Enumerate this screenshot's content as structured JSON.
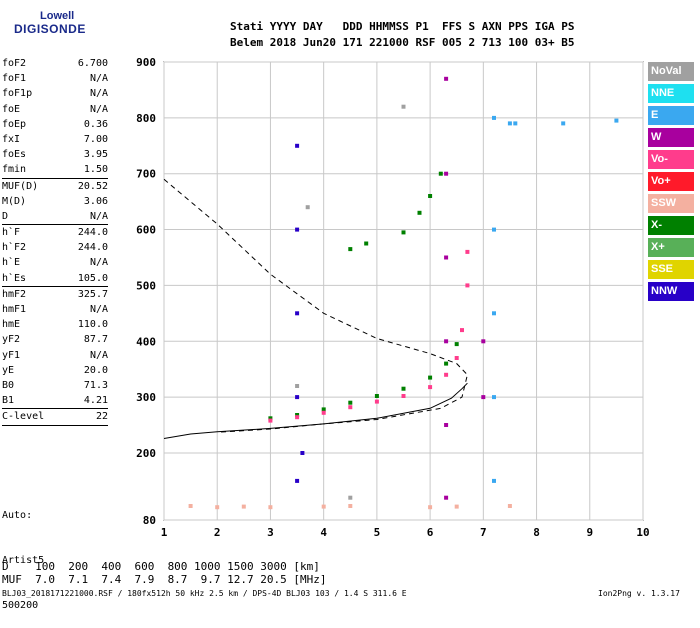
{
  "logo": {
    "line1": "Lowell",
    "line2": "DIGISONDE"
  },
  "header": {
    "cols": [
      "Stati",
      "YYYY",
      "DAY",
      "DDD",
      "HHMMSS",
      "P1",
      "FFS",
      "S",
      "AXN",
      "PPS",
      "IGA",
      "PS"
    ],
    "vals": [
      "Belem",
      "2018",
      "Jun20",
      "171",
      "221000",
      "RSF",
      "005",
      "2",
      "713",
      "100",
      "03+",
      "B5"
    ]
  },
  "params": [
    [
      {
        "k": "foF2",
        "v": "6.700"
      },
      {
        "k": "foF1",
        "v": "N/A"
      },
      {
        "k": "foF1p",
        "v": "N/A"
      },
      {
        "k": "foE",
        "v": "N/A"
      },
      {
        "k": "foEp",
        "v": "0.36"
      },
      {
        "k": "fxI",
        "v": "7.00"
      },
      {
        "k": "foEs",
        "v": "3.95"
      },
      {
        "k": "fmin",
        "v": "1.50"
      }
    ],
    [
      {
        "k": "MUF(D)",
        "v": "20.52"
      },
      {
        "k": "M(D)",
        "v": "3.06"
      },
      {
        "k": "D",
        "v": "N/A"
      }
    ],
    [
      {
        "k": "h`F",
        "v": "244.0"
      },
      {
        "k": "h`F2",
        "v": "244.0"
      },
      {
        "k": "h`E",
        "v": "N/A"
      },
      {
        "k": "h`Es",
        "v": "105.0"
      }
    ],
    [
      {
        "k": "hmF2",
        "v": "325.7"
      },
      {
        "k": "hmF1",
        "v": "N/A"
      },
      {
        "k": "hmE",
        "v": "110.0"
      },
      {
        "k": "yF2",
        "v": "87.7"
      },
      {
        "k": "yF1",
        "v": "N/A"
      },
      {
        "k": "yE",
        "v": "20.0"
      },
      {
        "k": "B0",
        "v": "71.3"
      },
      {
        "k": "B1",
        "v": "4.21"
      }
    ],
    [
      {
        "k": "C-level",
        "v": "22"
      }
    ]
  ],
  "auto": {
    "l1": "Auto:",
    "l2": "Artist5",
    "l3": "500200"
  },
  "legend": [
    {
      "label": "NoVal",
      "color": "#a0a0a0"
    },
    {
      "label": "NNE",
      "color": "#1ee0f0"
    },
    {
      "label": "E",
      "color": "#3aa8f0"
    },
    {
      "label": "W",
      "color": "#a8009e"
    },
    {
      "label": "Vo-",
      "color": "#ff3c8c"
    },
    {
      "label": "Vo+",
      "color": "#ff1a2a"
    },
    {
      "label": "SSW",
      "color": "#f4b0a0"
    },
    {
      "label": "X-",
      "color": "#008000"
    },
    {
      "label": "X+",
      "color": "#58b058"
    },
    {
      "label": "SSE",
      "color": "#e0d400"
    },
    {
      "label": "NNW",
      "color": "#2800c8"
    }
  ],
  "bottom": {
    "d_row": "D    100  200  400  600  800 1000 1500 3000 [km]",
    "muf_row": "MUF  7.0  7.1  7.4  7.9  8.7  9.7 12.7 20.5 [MHz]"
  },
  "footer": {
    "left": "BLJ03_2018171221000.RSF / 180fx512h 50 kHz 2.5 km / DPS-4D BLJ03 103 / 1.4 S 311.6 E",
    "right": "Ion2Png v. 1.3.17"
  },
  "chart_data": {
    "type": "scatter",
    "xlim": [
      1,
      10
    ],
    "ylim": [
      80,
      900
    ],
    "x_ticks": [
      "1",
      "2",
      "3",
      "4",
      "5",
      "6",
      "7",
      "8",
      "9",
      "10"
    ],
    "y_ticks": [
      "80",
      "200",
      "300",
      "400",
      "500",
      "600",
      "700",
      "800",
      "900"
    ],
    "grid": true,
    "series": [
      {
        "name": "X-",
        "color": "#008000",
        "points": [
          [
            3.0,
            262
          ],
          [
            3.5,
            268
          ],
          [
            4.0,
            278
          ],
          [
            4.5,
            290
          ],
          [
            5.0,
            302
          ],
          [
            5.5,
            315
          ],
          [
            6.0,
            335
          ],
          [
            6.3,
            360
          ],
          [
            6.5,
            395
          ],
          [
            5.5,
            595
          ],
          [
            5.8,
            630
          ],
          [
            6.0,
            660
          ],
          [
            6.2,
            700
          ],
          [
            4.8,
            575
          ],
          [
            4.5,
            565
          ]
        ]
      },
      {
        "name": "Vo-",
        "color": "#ff3c8c",
        "points": [
          [
            3.0,
            258
          ],
          [
            3.5,
            264
          ],
          [
            4.0,
            272
          ],
          [
            4.5,
            282
          ],
          [
            5.0,
            292
          ],
          [
            5.5,
            302
          ],
          [
            6.0,
            318
          ],
          [
            6.3,
            340
          ],
          [
            6.5,
            370
          ],
          [
            6.6,
            420
          ],
          [
            6.7,
            500
          ],
          [
            6.7,
            560
          ]
        ]
      },
      {
        "name": "W",
        "color": "#a8009e",
        "points": [
          [
            6.3,
            120
          ],
          [
            6.3,
            250
          ],
          [
            6.3,
            400
          ],
          [
            6.3,
            550
          ],
          [
            6.3,
            700
          ],
          [
            6.3,
            870
          ],
          [
            7.0,
            300
          ],
          [
            7.0,
            400
          ]
        ]
      },
      {
        "name": "E",
        "color": "#3aa8f0",
        "points": [
          [
            7.2,
            150
          ],
          [
            7.2,
            300
          ],
          [
            7.2,
            450
          ],
          [
            7.2,
            600
          ],
          [
            7.2,
            800
          ],
          [
            7.5,
            790
          ],
          [
            8.5,
            790
          ],
          [
            9.5,
            795
          ],
          [
            7.6,
            790
          ]
        ]
      },
      {
        "name": "NNW",
        "color": "#2800c8",
        "points": [
          [
            3.5,
            150
          ],
          [
            3.5,
            300
          ],
          [
            3.5,
            450
          ],
          [
            3.5,
            600
          ],
          [
            3.5,
            750
          ],
          [
            3.6,
            200
          ]
        ]
      },
      {
        "name": "SSW",
        "color": "#f4b0a0",
        "points": [
          [
            1.5,
            105
          ],
          [
            2.0,
            103
          ],
          [
            2.5,
            104
          ],
          [
            3.0,
            103
          ],
          [
            4.0,
            104
          ],
          [
            4.5,
            105
          ],
          [
            6.0,
            103
          ],
          [
            6.5,
            104
          ],
          [
            7.5,
            105
          ]
        ]
      },
      {
        "name": "NoVal",
        "color": "#a0a0a0",
        "points": [
          [
            3.5,
            320
          ],
          [
            3.7,
            640
          ],
          [
            4.5,
            120
          ],
          [
            5.5,
            820
          ]
        ]
      }
    ],
    "profile_curve": [
      [
        1.0,
        226
      ],
      [
        1.5,
        234
      ],
      [
        2.0,
        238
      ],
      [
        3.0,
        244
      ],
      [
        4.0,
        252
      ],
      [
        5.0,
        262
      ],
      [
        6.0,
        280
      ],
      [
        6.4,
        298
      ],
      [
        6.6,
        315
      ],
      [
        6.7,
        325
      ]
    ],
    "model_curve": [
      [
        1.0,
        690
      ],
      [
        2.0,
        610
      ],
      [
        3.0,
        520
      ],
      [
        4.0,
        450
      ],
      [
        5.0,
        405
      ],
      [
        6.0,
        378
      ],
      [
        6.5,
        360
      ],
      [
        6.7,
        340
      ],
      [
        6.6,
        300
      ],
      [
        6.2,
        280
      ],
      [
        5.0,
        260
      ],
      [
        4.0,
        252
      ],
      [
        3.0,
        243
      ],
      [
        2.0,
        237
      ]
    ]
  }
}
